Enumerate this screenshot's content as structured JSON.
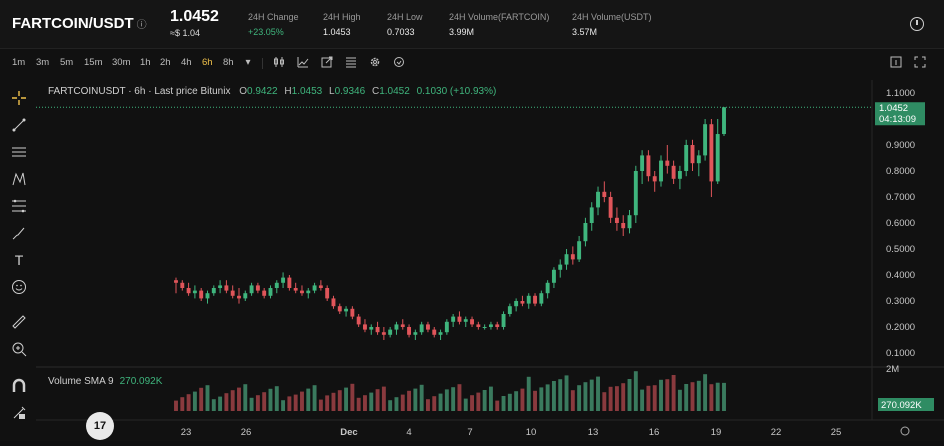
{
  "header": {
    "symbol": "FARTCOIN/USDT",
    "info_icon": "info-icon",
    "price": "1.0452",
    "price_converted": "≈$ 1.04",
    "stats": [
      {
        "label": "24H Change",
        "value": "+23.05%",
        "up": true
      },
      {
        "label": "24H High",
        "value": "1.0453"
      },
      {
        "label": "24H Low",
        "value": "0.7033"
      },
      {
        "label": "24H Volume(FARTCOIN)",
        "value": "3.99M"
      },
      {
        "label": "24H Volume(USDT)",
        "value": "3.57M"
      }
    ]
  },
  "toolbar": {
    "timeframes": [
      "1m",
      "3m",
      "5m",
      "15m",
      "30m",
      "1h",
      "2h",
      "4h",
      "6h",
      "8h"
    ],
    "active": "6h",
    "icons": [
      "chevron-down-icon",
      "candles-icon",
      "line-chart-icon",
      "indicators-icon",
      "list-icon",
      "settings-icon",
      "reload-icon",
      "layout-icon",
      "fullscreen-icon"
    ]
  },
  "legend": {
    "title": "FARTCOINUSDT · 6h · Last price Bitunix",
    "o_label": "O",
    "o": "0.9422",
    "h_label": "H",
    "h": "1.0453",
    "l_label": "L",
    "l": "0.9346",
    "c_label": "C",
    "c": "1.0452",
    "change": "0.1030 (+10.93%)"
  },
  "volume": {
    "label": "Volume SMA 9",
    "value": "270.092K",
    "axis_top": "2M",
    "badge": "270.092K"
  },
  "price_badge": {
    "price": "1.0452",
    "countdown": "04:13:09"
  },
  "colors": {
    "up": "#3fb57d",
    "down": "#e0555a",
    "vol_up": "#3a7a5e",
    "vol_down": "#8a3a3e",
    "accent": "#f0c14b"
  },
  "tv_logo": "17",
  "chart_data": {
    "type": "candlestick",
    "y_ticks": [
      "1.1000",
      "0.9000",
      "0.8000",
      "0.7000",
      "0.6000",
      "0.5000",
      "0.4000",
      "0.3000",
      "0.2000",
      "0.1000"
    ],
    "x_ticks": [
      "23",
      "26",
      "Dec",
      "4",
      "7",
      "10",
      "13",
      "16",
      "19",
      "22",
      "25"
    ],
    "candles": [
      [
        0.38,
        0.39,
        0.33,
        0.37
      ],
      [
        0.37,
        0.38,
        0.34,
        0.35
      ],
      [
        0.35,
        0.37,
        0.32,
        0.33
      ],
      [
        0.33,
        0.36,
        0.31,
        0.34
      ],
      [
        0.34,
        0.35,
        0.3,
        0.31
      ],
      [
        0.31,
        0.34,
        0.29,
        0.33
      ],
      [
        0.33,
        0.36,
        0.32,
        0.35
      ],
      [
        0.35,
        0.38,
        0.33,
        0.36
      ],
      [
        0.36,
        0.38,
        0.33,
        0.34
      ],
      [
        0.34,
        0.36,
        0.31,
        0.32
      ],
      [
        0.32,
        0.35,
        0.29,
        0.31
      ],
      [
        0.31,
        0.34,
        0.3,
        0.33
      ],
      [
        0.33,
        0.37,
        0.32,
        0.36
      ],
      [
        0.36,
        0.37,
        0.33,
        0.34
      ],
      [
        0.34,
        0.35,
        0.31,
        0.32
      ],
      [
        0.32,
        0.36,
        0.31,
        0.35
      ],
      [
        0.35,
        0.38,
        0.33,
        0.37
      ],
      [
        0.37,
        0.41,
        0.35,
        0.39
      ],
      [
        0.39,
        0.4,
        0.34,
        0.35
      ],
      [
        0.35,
        0.37,
        0.33,
        0.34
      ],
      [
        0.34,
        0.36,
        0.32,
        0.33
      ],
      [
        0.33,
        0.35,
        0.31,
        0.34
      ],
      [
        0.34,
        0.37,
        0.33,
        0.36
      ],
      [
        0.36,
        0.38,
        0.34,
        0.35
      ],
      [
        0.35,
        0.36,
        0.3,
        0.31
      ],
      [
        0.31,
        0.32,
        0.27,
        0.28
      ],
      [
        0.28,
        0.29,
        0.25,
        0.26
      ],
      [
        0.26,
        0.28,
        0.24,
        0.27
      ],
      [
        0.27,
        0.28,
        0.23,
        0.24
      ],
      [
        0.24,
        0.25,
        0.2,
        0.21
      ],
      [
        0.21,
        0.23,
        0.18,
        0.19
      ],
      [
        0.19,
        0.21,
        0.17,
        0.2
      ],
      [
        0.2,
        0.22,
        0.17,
        0.18
      ],
      [
        0.18,
        0.2,
        0.15,
        0.17
      ],
      [
        0.17,
        0.2,
        0.16,
        0.19
      ],
      [
        0.19,
        0.22,
        0.17,
        0.21
      ],
      [
        0.21,
        0.23,
        0.19,
        0.2
      ],
      [
        0.2,
        0.21,
        0.16,
        0.17
      ],
      [
        0.17,
        0.19,
        0.15,
        0.18
      ],
      [
        0.18,
        0.22,
        0.17,
        0.21
      ],
      [
        0.21,
        0.22,
        0.18,
        0.19
      ],
      [
        0.19,
        0.2,
        0.16,
        0.17
      ],
      [
        0.17,
        0.19,
        0.15,
        0.18
      ],
      [
        0.18,
        0.23,
        0.17,
        0.22
      ],
      [
        0.22,
        0.25,
        0.2,
        0.24
      ],
      [
        0.24,
        0.26,
        0.21,
        0.22
      ],
      [
        0.22,
        0.24,
        0.2,
        0.23
      ],
      [
        0.23,
        0.24,
        0.2,
        0.21
      ],
      [
        0.21,
        0.22,
        0.19,
        0.2
      ],
      [
        0.2,
        0.21,
        0.19,
        0.2
      ],
      [
        0.2,
        0.22,
        0.19,
        0.21
      ],
      [
        0.21,
        0.22,
        0.19,
        0.2
      ],
      [
        0.2,
        0.26,
        0.19,
        0.25
      ],
      [
        0.25,
        0.29,
        0.24,
        0.28
      ],
      [
        0.28,
        0.31,
        0.26,
        0.3
      ],
      [
        0.3,
        0.32,
        0.28,
        0.29
      ],
      [
        0.29,
        0.33,
        0.27,
        0.32
      ],
      [
        0.32,
        0.33,
        0.28,
        0.29
      ],
      [
        0.29,
        0.34,
        0.28,
        0.33
      ],
      [
        0.33,
        0.38,
        0.31,
        0.37
      ],
      [
        0.37,
        0.43,
        0.35,
        0.42
      ],
      [
        0.42,
        0.46,
        0.39,
        0.44
      ],
      [
        0.44,
        0.5,
        0.42,
        0.48
      ],
      [
        0.48,
        0.51,
        0.44,
        0.46
      ],
      [
        0.46,
        0.55,
        0.45,
        0.53
      ],
      [
        0.53,
        0.62,
        0.51,
        0.6
      ],
      [
        0.6,
        0.68,
        0.57,
        0.66
      ],
      [
        0.66,
        0.74,
        0.63,
        0.72
      ],
      [
        0.72,
        0.76,
        0.68,
        0.7
      ],
      [
        0.7,
        0.72,
        0.6,
        0.62
      ],
      [
        0.62,
        0.66,
        0.57,
        0.6
      ],
      [
        0.6,
        0.63,
        0.55,
        0.58
      ],
      [
        0.58,
        0.65,
        0.56,
        0.63
      ],
      [
        0.63,
        0.82,
        0.6,
        0.8
      ],
      [
        0.8,
        0.88,
        0.75,
        0.86
      ],
      [
        0.86,
        0.88,
        0.76,
        0.78
      ],
      [
        0.78,
        0.8,
        0.72,
        0.76
      ],
      [
        0.76,
        0.86,
        0.74,
        0.84
      ],
      [
        0.84,
        0.9,
        0.79,
        0.82
      ],
      [
        0.82,
        0.84,
        0.75,
        0.77
      ],
      [
        0.77,
        0.82,
        0.73,
        0.8
      ],
      [
        0.8,
        0.92,
        0.78,
        0.9
      ],
      [
        0.9,
        0.92,
        0.8,
        0.83
      ],
      [
        0.83,
        0.88,
        0.78,
        0.86
      ],
      [
        0.86,
        1.0,
        0.84,
        0.98
      ],
      [
        0.98,
        1.0,
        0.7,
        0.76
      ],
      [
        0.76,
        1.0,
        0.75,
        0.9422
      ],
      [
        0.9422,
        1.0453,
        0.9346,
        1.0452
      ]
    ]
  }
}
